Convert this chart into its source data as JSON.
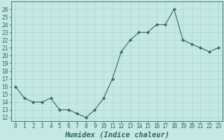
{
  "x": [
    0,
    1,
    2,
    3,
    4,
    5,
    6,
    7,
    8,
    9,
    10,
    11,
    12,
    13,
    14,
    15,
    16,
    17,
    18,
    19,
    20,
    21,
    22,
    23
  ],
  "y": [
    16,
    14.5,
    14,
    14,
    14.5,
    13,
    13,
    12.5,
    12,
    13,
    14.5,
    17,
    20.5,
    22,
    23,
    23,
    24,
    24,
    26,
    22,
    21.5,
    21,
    20.5,
    21
  ],
  "line_color": "#2e6b5e",
  "marker": "D",
  "marker_size": 2.0,
  "bg_color": "#c5e8e5",
  "grid_color": "#aed4d0",
  "xlabel": "Humidex (Indice chaleur)",
  "xlabel_style": "italic",
  "xlabel_weight": "bold",
  "ylim": [
    11.5,
    27
  ],
  "xlim": [
    -0.5,
    23.5
  ],
  "yticks": [
    12,
    13,
    14,
    15,
    16,
    17,
    18,
    19,
    20,
    21,
    22,
    23,
    24,
    25,
    26
  ],
  "xtick_labels": [
    "0",
    "1",
    "2",
    "3",
    "4",
    "5",
    "6",
    "7",
    "8",
    "9",
    "10",
    "11",
    "12",
    "13",
    "14",
    "15",
    "16",
    "17",
    "18",
    "19",
    "20",
    "21",
    "22",
    "23"
  ],
  "tick_fontsize": 5.5,
  "xlabel_fontsize": 7.5,
  "linewidth": 0.8
}
